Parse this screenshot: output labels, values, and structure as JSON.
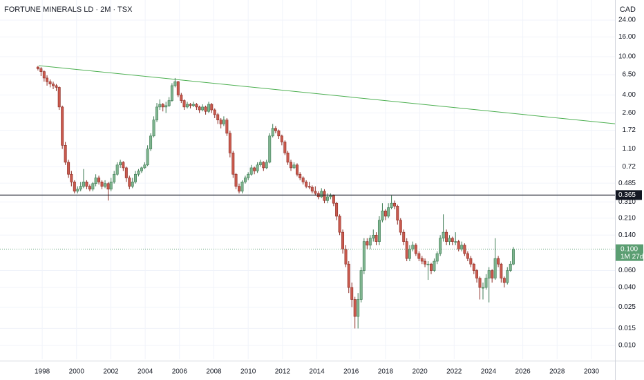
{
  "chart_data": {
    "type": "candlestick",
    "title": "FORTUNE MINERALS LD · 2M · TSX",
    "currency": "CAD",
    "log_scale": true,
    "grid": true,
    "up_color": "#7fb48f",
    "up_border": "#3c7a52",
    "down_color": "#c95a4e",
    "down_border": "#8b2a22",
    "xlim": [
      1995.54,
      2031.37
    ],
    "xticks": [
      1998,
      2000,
      2002,
      2004,
      2006,
      2008,
      2010,
      2012,
      2014,
      2016,
      2018,
      2020,
      2022,
      2024,
      2026,
      2028,
      2030
    ],
    "ylim": [
      0.00718,
      38.8
    ],
    "yticks": [
      {
        "value": 24,
        "label": "24.00"
      },
      {
        "value": 16,
        "label": "16.00"
      },
      {
        "value": 10,
        "label": "10.00"
      },
      {
        "value": 6.5,
        "label": "6.50"
      },
      {
        "value": 4,
        "label": "4.00"
      },
      {
        "value": 2.6,
        "label": "2.60"
      },
      1.72,
      {
        "value": 1.1,
        "label": "1.10"
      },
      0.72,
      0.485,
      {
        "value": 0.31,
        "label": "0.310"
      },
      {
        "value": 0.21,
        "label": "0.210"
      },
      {
        "value": 0.14,
        "label": "0.140"
      },
      {
        "value": 0.06,
        "label": "0.060"
      },
      {
        "value": 0.04,
        "label": "0.040"
      },
      0.025,
      0.015,
      {
        "value": 0.01,
        "label": "0.010"
      }
    ],
    "hline": {
      "value": 0.365,
      "color": "#131722"
    },
    "trendline": {
      "x": [
        1997.8,
        2031.37
      ],
      "y": [
        8.07,
        2.01
      ],
      "color": "#4caf50"
    },
    "last_price": {
      "value": 0.1,
      "label": "0.100",
      "countdown": "1M 27d",
      "color": "#5b9e72"
    },
    "x": [
      1997.75,
      1997.93,
      1998.11,
      1998.28,
      1998.46,
      1998.64,
      1998.82,
      1998.99,
      1999.17,
      1999.35,
      1999.53,
      1999.7,
      1999.88,
      2000.06,
      2000.24,
      2000.41,
      2000.59,
      2000.77,
      2000.95,
      2001.12,
      2001.3,
      2001.48,
      2001.66,
      2001.84,
      2002.01,
      2002.19,
      2002.37,
      2002.55,
      2002.72,
      2002.9,
      2003.08,
      2003.26,
      2003.43,
      2003.61,
      2003.79,
      2003.97,
      2004.14,
      2004.32,
      2004.5,
      2004.68,
      2004.85,
      2005.03,
      2005.21,
      2005.39,
      2005.56,
      2005.74,
      2005.92,
      2006.1,
      2006.27,
      2006.45,
      2006.63,
      2006.81,
      2006.99,
      2007.16,
      2007.34,
      2007.52,
      2007.7,
      2007.87,
      2008.05,
      2008.23,
      2008.41,
      2008.58,
      2008.76,
      2008.94,
      2009.12,
      2009.29,
      2009.47,
      2009.65,
      2009.83,
      2010.0,
      2010.18,
      2010.36,
      2010.54,
      2010.71,
      2010.89,
      2011.07,
      2011.25,
      2011.43,
      2011.6,
      2011.78,
      2011.96,
      2012.14,
      2012.31,
      2012.49,
      2012.67,
      2012.85,
      2013.02,
      2013.2,
      2013.38,
      2013.56,
      2013.73,
      2013.91,
      2014.09,
      2014.27,
      2014.44,
      2014.62,
      2014.8,
      2014.98,
      2015.15,
      2015.33,
      2015.51,
      2015.69,
      2015.86,
      2016.04,
      2016.22,
      2016.4,
      2016.58,
      2016.75,
      2016.93,
      2017.11,
      2017.29,
      2017.46,
      2017.64,
      2017.82,
      2018.0,
      2018.17,
      2018.35,
      2018.53,
      2018.7,
      2018.88,
      2019.06,
      2019.24,
      2019.41,
      2019.59,
      2019.77,
      2019.95,
      2020.13,
      2020.3,
      2020.48,
      2020.66,
      2020.84,
      2021.01,
      2021.19,
      2021.37,
      2021.55,
      2021.73,
      2021.9,
      2022.08,
      2022.26,
      2022.44,
      2022.61,
      2022.79,
      2022.97,
      2023.15,
      2023.32,
      2023.5,
      2023.68,
      2023.86,
      2024.03,
      2024.21,
      2024.39,
      2024.57,
      2024.74,
      2024.92,
      2025.1,
      2025.28,
      2025.45
    ],
    "candles": [
      [
        7.8,
        8.0,
        7.2,
        7.5
      ],
      [
        7.5,
        7.8,
        6.3,
        7.0
      ],
      [
        7.0,
        7.2,
        5.5,
        6.0
      ],
      [
        6.0,
        6.4,
        5.0,
        5.5
      ],
      [
        5.5,
        5.8,
        4.8,
        5.2
      ],
      [
        5.2,
        5.5,
        4.6,
        5.0
      ],
      [
        5.0,
        5.2,
        4.4,
        4.8
      ],
      [
        4.8,
        4.9,
        2.8,
        3.0
      ],
      [
        3.0,
        3.1,
        1.1,
        1.2
      ],
      [
        1.2,
        1.3,
        0.75,
        0.8
      ],
      [
        0.8,
        0.85,
        0.55,
        0.6
      ],
      [
        0.6,
        0.65,
        0.45,
        0.5
      ],
      [
        0.5,
        0.52,
        0.38,
        0.4
      ],
      [
        0.4,
        0.45,
        0.38,
        0.42
      ],
      [
        0.42,
        0.5,
        0.4,
        0.45
      ],
      [
        0.45,
        0.68,
        0.43,
        0.5
      ],
      [
        0.5,
        0.52,
        0.42,
        0.45
      ],
      [
        0.45,
        0.47,
        0.4,
        0.42
      ],
      [
        0.42,
        0.5,
        0.4,
        0.48
      ],
      [
        0.48,
        0.6,
        0.45,
        0.55
      ],
      [
        0.55,
        0.58,
        0.47,
        0.5
      ],
      [
        0.5,
        0.52,
        0.42,
        0.45
      ],
      [
        0.45,
        0.52,
        0.43,
        0.48
      ],
      [
        0.48,
        0.5,
        0.32,
        0.42
      ],
      [
        0.42,
        0.55,
        0.4,
        0.5
      ],
      [
        0.5,
        0.65,
        0.48,
        0.6
      ],
      [
        0.6,
        0.8,
        0.58,
        0.75
      ],
      [
        0.75,
        0.85,
        0.7,
        0.8
      ],
      [
        0.8,
        0.82,
        0.65,
        0.7
      ],
      [
        0.7,
        0.72,
        0.5,
        0.55
      ],
      [
        0.55,
        0.58,
        0.42,
        0.45
      ],
      [
        0.45,
        0.55,
        0.43,
        0.5
      ],
      [
        0.5,
        0.65,
        0.48,
        0.6
      ],
      [
        0.6,
        0.68,
        0.57,
        0.65
      ],
      [
        0.65,
        0.72,
        0.62,
        0.7
      ],
      [
        0.7,
        0.8,
        0.68,
        0.75
      ],
      [
        0.75,
        1.2,
        0.73,
        1.1
      ],
      [
        1.1,
        1.6,
        1.05,
        1.5
      ],
      [
        1.5,
        2.4,
        1.45,
        2.2
      ],
      [
        2.2,
        3.3,
        2.1,
        3.0
      ],
      [
        3.0,
        3.6,
        2.8,
        3.2
      ],
      [
        3.2,
        3.3,
        2.7,
        3.0
      ],
      [
        3.0,
        3.4,
        2.6,
        3.1
      ],
      [
        3.1,
        3.8,
        3.0,
        3.5
      ],
      [
        3.5,
        5.3,
        3.4,
        5.0
      ],
      [
        5.0,
        6.0,
        4.8,
        5.5
      ],
      [
        5.5,
        5.6,
        3.8,
        4.0
      ],
      [
        4.0,
        4.2,
        3.3,
        3.5
      ],
      [
        3.5,
        3.6,
        2.8,
        3.0
      ],
      [
        3.0,
        3.4,
        2.9,
        3.2
      ],
      [
        3.2,
        3.3,
        2.9,
        3.1
      ],
      [
        3.1,
        3.4,
        3.0,
        3.2
      ],
      [
        3.2,
        3.3,
        2.8,
        3.0
      ],
      [
        3.0,
        3.1,
        2.6,
        2.8
      ],
      [
        2.8,
        3.2,
        2.7,
        3.0
      ],
      [
        3.0,
        3.1,
        2.5,
        2.7
      ],
      [
        2.7,
        3.4,
        2.6,
        3.2
      ],
      [
        3.2,
        3.3,
        2.6,
        2.8
      ],
      [
        2.8,
        2.9,
        2.3,
        2.5
      ],
      [
        2.5,
        2.6,
        2.0,
        2.2
      ],
      [
        2.2,
        2.3,
        1.8,
        2.0
      ],
      [
        2.0,
        2.4,
        1.9,
        2.2
      ],
      [
        2.2,
        2.3,
        1.5,
        1.6
      ],
      [
        1.6,
        1.7,
        0.9,
        1.0
      ],
      [
        1.0,
        1.05,
        0.55,
        0.6
      ],
      [
        0.6,
        0.62,
        0.42,
        0.45
      ],
      [
        0.45,
        0.48,
        0.38,
        0.4
      ],
      [
        0.4,
        0.52,
        0.38,
        0.5
      ],
      [
        0.5,
        0.58,
        0.48,
        0.55
      ],
      [
        0.55,
        0.63,
        0.52,
        0.6
      ],
      [
        0.6,
        0.75,
        0.58,
        0.7
      ],
      [
        0.7,
        0.72,
        0.6,
        0.65
      ],
      [
        0.65,
        0.8,
        0.62,
        0.75
      ],
      [
        0.75,
        0.85,
        0.72,
        0.8
      ],
      [
        0.8,
        0.82,
        0.65,
        0.7
      ],
      [
        0.7,
        0.85,
        0.68,
        0.8
      ],
      [
        0.8,
        1.6,
        0.78,
        1.5
      ],
      [
        1.5,
        2.0,
        1.45,
        1.8
      ],
      [
        1.8,
        1.9,
        1.6,
        1.7
      ],
      [
        1.7,
        1.75,
        1.4,
        1.5
      ],
      [
        1.5,
        1.55,
        1.2,
        1.3
      ],
      [
        1.3,
        1.35,
        0.95,
        1.0
      ],
      [
        1.0,
        1.05,
        0.75,
        0.8
      ],
      [
        0.8,
        0.85,
        0.65,
        0.7
      ],
      [
        0.7,
        0.8,
        0.68,
        0.75
      ],
      [
        0.75,
        0.78,
        0.57,
        0.6
      ],
      [
        0.6,
        0.63,
        0.52,
        0.55
      ],
      [
        0.55,
        0.57,
        0.47,
        0.5
      ],
      [
        0.5,
        0.52,
        0.43,
        0.45
      ],
      [
        0.45,
        0.5,
        0.42,
        0.44
      ],
      [
        0.44,
        0.46,
        0.38,
        0.4
      ],
      [
        0.4,
        0.45,
        0.36,
        0.38
      ],
      [
        0.38,
        0.4,
        0.33,
        0.35
      ],
      [
        0.35,
        0.43,
        0.34,
        0.4
      ],
      [
        0.4,
        0.42,
        0.3,
        0.32
      ],
      [
        0.32,
        0.38,
        0.3,
        0.35
      ],
      [
        0.35,
        0.38,
        0.33,
        0.36
      ],
      [
        0.36,
        0.37,
        0.28,
        0.3
      ],
      [
        0.3,
        0.31,
        0.2,
        0.22
      ],
      [
        0.22,
        0.23,
        0.14,
        0.15
      ],
      [
        0.15,
        0.16,
        0.09,
        0.1
      ],
      [
        0.1,
        0.11,
        0.065,
        0.07
      ],
      [
        0.07,
        0.075,
        0.035,
        0.04
      ],
      [
        0.04,
        0.045,
        0.025,
        0.03
      ],
      [
        0.03,
        0.032,
        0.015,
        0.02
      ],
      [
        0.02,
        0.035,
        0.015,
        0.03
      ],
      [
        0.03,
        0.065,
        0.028,
        0.06
      ],
      [
        0.06,
        0.13,
        0.055,
        0.12
      ],
      [
        0.12,
        0.13,
        0.1,
        0.11
      ],
      [
        0.11,
        0.14,
        0.1,
        0.13
      ],
      [
        0.13,
        0.16,
        0.12,
        0.14
      ],
      [
        0.14,
        0.15,
        0.11,
        0.12
      ],
      [
        0.12,
        0.22,
        0.11,
        0.2
      ],
      [
        0.2,
        0.3,
        0.19,
        0.25
      ],
      [
        0.25,
        0.26,
        0.2,
        0.22
      ],
      [
        0.22,
        0.3,
        0.21,
        0.27
      ],
      [
        0.27,
        0.36,
        0.26,
        0.3
      ],
      [
        0.3,
        0.32,
        0.26,
        0.28
      ],
      [
        0.28,
        0.29,
        0.18,
        0.2
      ],
      [
        0.2,
        0.21,
        0.14,
        0.15
      ],
      [
        0.15,
        0.16,
        0.11,
        0.12
      ],
      [
        0.12,
        0.13,
        0.075,
        0.08
      ],
      [
        0.08,
        0.11,
        0.075,
        0.1
      ],
      [
        0.1,
        0.12,
        0.095,
        0.11
      ],
      [
        0.11,
        0.115,
        0.085,
        0.09
      ],
      [
        0.09,
        0.095,
        0.075,
        0.08
      ],
      [
        0.08,
        0.085,
        0.07,
        0.075
      ],
      [
        0.075,
        0.08,
        0.065,
        0.07
      ],
      [
        0.07,
        0.075,
        0.048,
        0.07
      ],
      [
        0.07,
        0.072,
        0.055,
        0.06
      ],
      [
        0.06,
        0.08,
        0.058,
        0.075
      ],
      [
        0.075,
        0.095,
        0.07,
        0.09
      ],
      [
        0.09,
        0.14,
        0.085,
        0.13
      ],
      [
        0.13,
        0.23,
        0.12,
        0.15
      ],
      [
        0.15,
        0.16,
        0.11,
        0.12
      ],
      [
        0.12,
        0.14,
        0.11,
        0.13
      ],
      [
        0.13,
        0.135,
        0.11,
        0.12
      ],
      [
        0.12,
        0.15,
        0.11,
        0.12
      ],
      [
        0.12,
        0.125,
        0.095,
        0.1
      ],
      [
        0.1,
        0.12,
        0.095,
        0.11
      ],
      [
        0.11,
        0.115,
        0.085,
        0.09
      ],
      [
        0.09,
        0.095,
        0.075,
        0.08
      ],
      [
        0.08,
        0.085,
        0.065,
        0.07
      ],
      [
        0.07,
        0.072,
        0.055,
        0.06
      ],
      [
        0.06,
        0.062,
        0.045,
        0.05
      ],
      [
        0.05,
        0.052,
        0.03,
        0.04
      ],
      [
        0.04,
        0.045,
        0.03,
        0.04
      ],
      [
        0.04,
        0.055,
        0.038,
        0.05
      ],
      [
        0.05,
        0.065,
        0.028,
        0.06
      ],
      [
        0.06,
        0.062,
        0.045,
        0.05
      ],
      [
        0.05,
        0.13,
        0.048,
        0.08
      ],
      [
        0.08,
        0.085,
        0.065,
        0.07
      ],
      [
        0.07,
        0.072,
        0.045,
        0.05
      ],
      [
        0.05,
        0.052,
        0.04,
        0.045
      ],
      [
        0.045,
        0.065,
        0.043,
        0.06
      ],
      [
        0.06,
        0.075,
        0.058,
        0.07
      ],
      [
        0.07,
        0.105,
        0.068,
        0.1
      ]
    ]
  }
}
